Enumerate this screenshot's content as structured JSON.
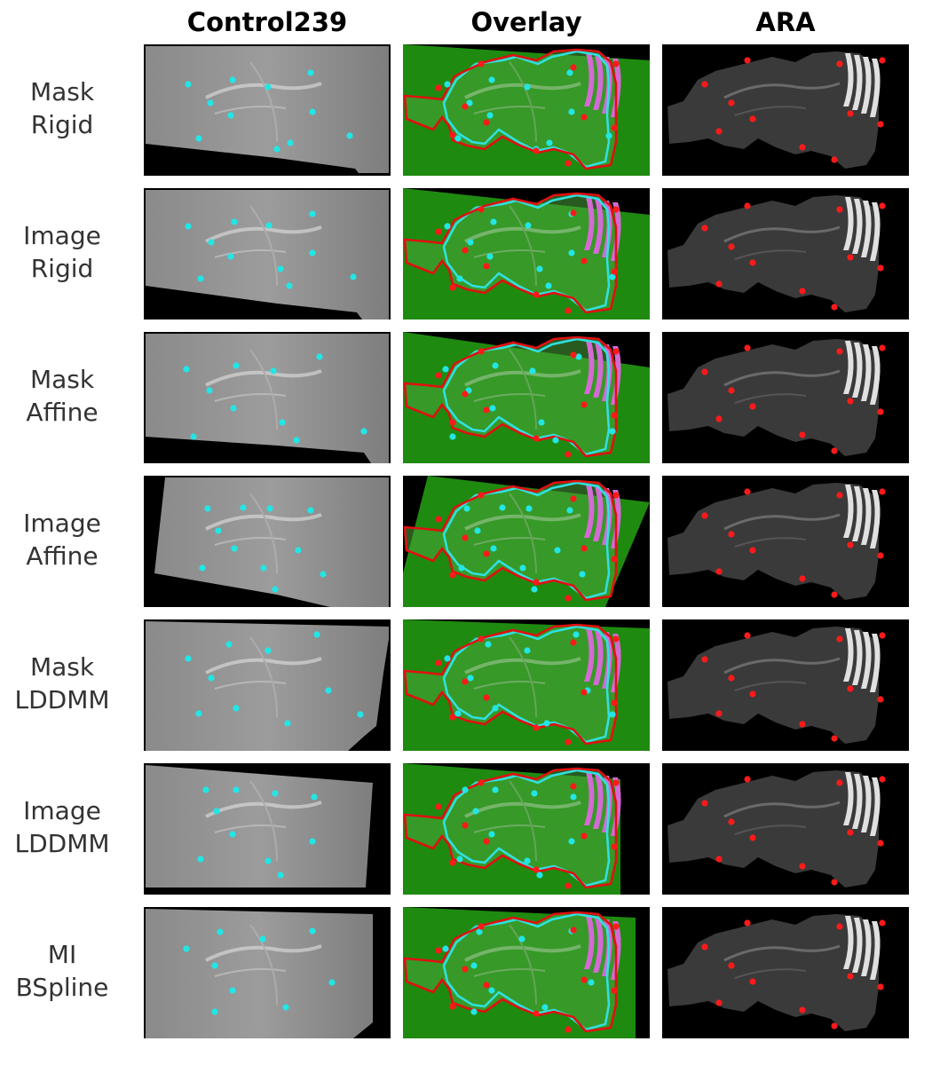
{
  "columns": [
    "Control239",
    "Overlay",
    "ARA"
  ],
  "rows": [
    {
      "label_line1": "Mask",
      "label_line2": "Rigid"
    },
    {
      "label_line1": "Image",
      "label_line2": "Rigid"
    },
    {
      "label_line1": "Mask",
      "label_line2": "Affine"
    },
    {
      "label_line1": "Image",
      "label_line2": "Affine"
    },
    {
      "label_line1": "Mask",
      "label_line2": "LDDMM"
    },
    {
      "label_line1": "Image",
      "label_line2": "LDDMM"
    },
    {
      "label_line1": "MI",
      "label_line2": "BSpline"
    }
  ],
  "colors": {
    "landmark_control": "#22e6e6",
    "landmark_atlas": "#ff1a1a",
    "overlay_tissue": "#1f8a10",
    "atlas_outline": "#e01010",
    "control_outline": "#30e0e0"
  }
}
